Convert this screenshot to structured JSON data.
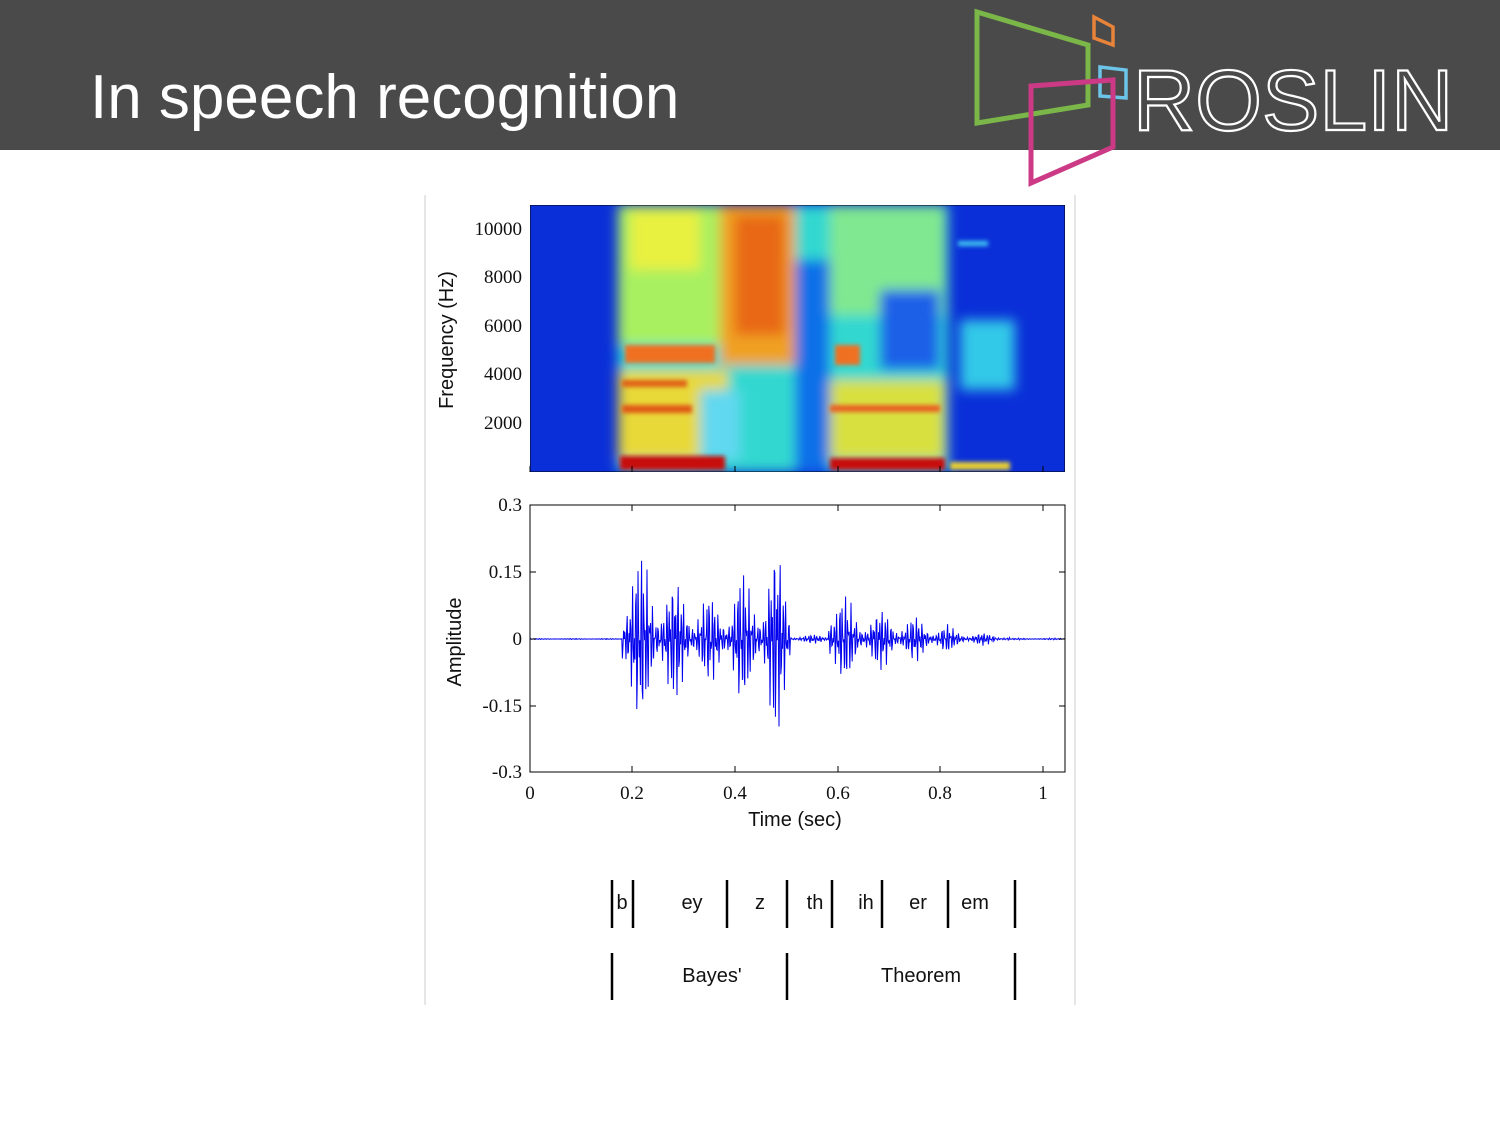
{
  "header": {
    "title": "In speech recognition",
    "logo": "ROSLIN"
  },
  "spectrogram": {
    "y_label": "Frequency (Hz)",
    "y_ticks": [
      "10000",
      "8000",
      "6000",
      "4000",
      "2000"
    ]
  },
  "waveform": {
    "y_label": "Amplitude",
    "y_ticks": [
      "0.3",
      "0.15",
      "0",
      "-0.15",
      "-0.3"
    ],
    "x_ticks": [
      "0",
      "0.2",
      "0.4",
      "0.6",
      "0.8",
      "1"
    ],
    "x_label": "Time (sec)"
  },
  "phonemes": [
    "b",
    "ey",
    "z",
    "th",
    "ih",
    "er",
    "em"
  ],
  "words": [
    "Bayes'",
    "Theorem"
  ]
}
